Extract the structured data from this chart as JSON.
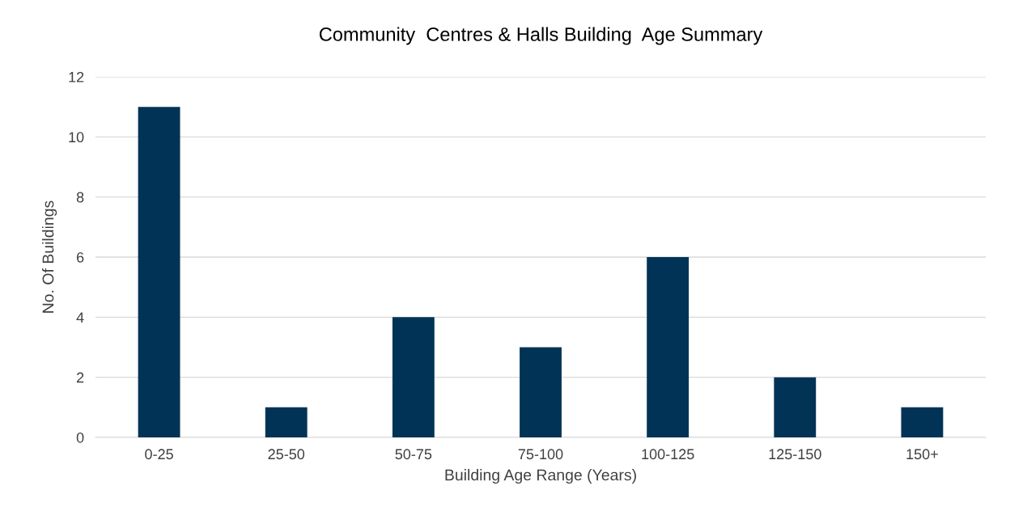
{
  "chart_data": {
    "type": "bar",
    "title": "Community  Centres & Halls Building  Age Summary",
    "xlabel": "Building Age Range (Years)",
    "ylabel": "No. Of Buildings",
    "categories": [
      "0-25",
      "25-50",
      "50-75",
      "75-100",
      "100-125",
      "125-150",
      "150+"
    ],
    "values": [
      11,
      1,
      4,
      3,
      6,
      2,
      1
    ],
    "color": "#003355",
    "ylim": [
      0,
      12
    ],
    "yticks": [
      0,
      2,
      4,
      6,
      8,
      10,
      12
    ],
    "grid": "y",
    "legend": false
  }
}
